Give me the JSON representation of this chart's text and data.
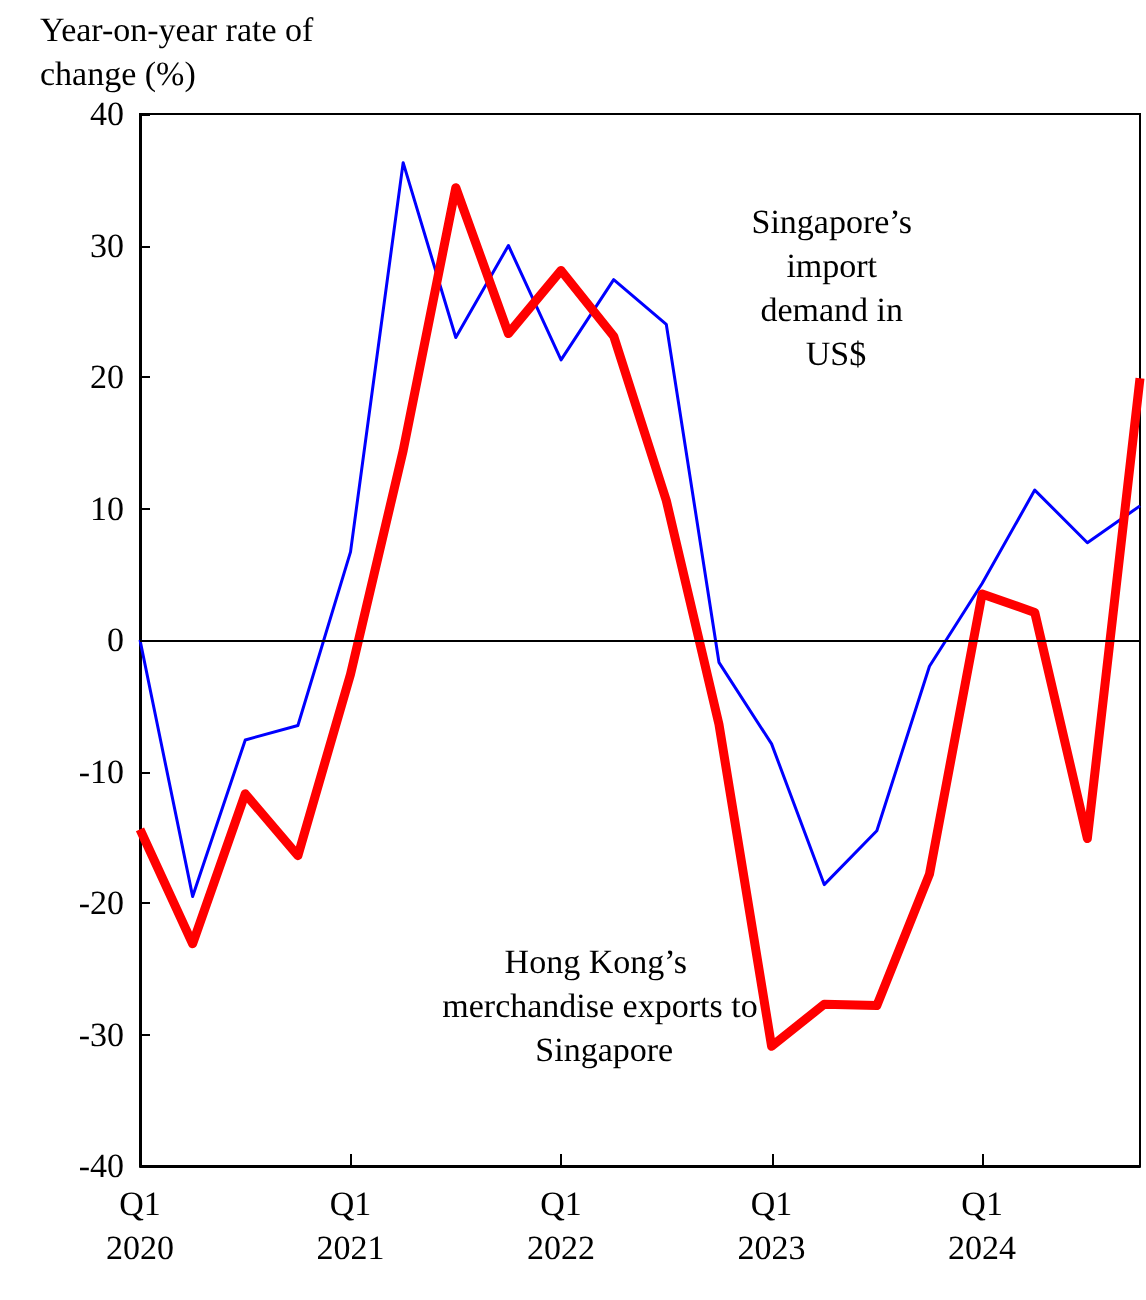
{
  "chart_data": {
    "type": "line",
    "ylabel": "Year-on-year rate of change (%)",
    "categories": [
      "Q1 2020",
      null,
      null,
      null,
      "Q1 2021",
      null,
      null,
      null,
      "Q1 2022",
      null,
      null,
      null,
      "Q1 2023",
      null,
      null,
      null,
      "Q1 2024",
      null,
      null,
      null
    ],
    "series": [
      {
        "name": "Singapore’s import demand in US$",
        "color": "#0000ff",
        "values": [
          0,
          -19.5,
          -7.6,
          -6.5,
          6.7,
          36.3,
          23,
          30,
          21.3,
          27.4,
          24,
          -1.7,
          -7.9,
          -18.6,
          -14.5,
          -2,
          4.3,
          11.4,
          7.4,
          10.2
        ]
      },
      {
        "name": "Hong Kong’s merchandise exports to Singapore",
        "color": "#ff0000",
        "values": [
          -14.4,
          -23.1,
          -11.7,
          -16.4,
          -2.6,
          14.4,
          34.4,
          23.3,
          28.1,
          23.1,
          10.6,
          -6.4,
          -30.9,
          -27.7,
          -27.8,
          -17.8,
          3.5,
          2.1,
          -15.1,
          19.9
        ]
      }
    ],
    "ylim": [
      -40,
      40
    ],
    "yticks": [
      -40,
      -30,
      -20,
      -10,
      0,
      10,
      20,
      30,
      40
    ],
    "ref_lines": [
      {
        "axis": "y",
        "value": 0,
        "color": "#000000"
      }
    ],
    "grid": false,
    "legend": false,
    "marker": "none",
    "line_style": "solid"
  }
}
